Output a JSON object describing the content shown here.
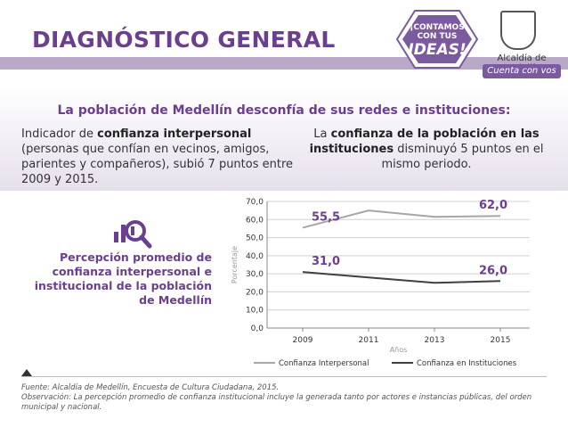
{
  "header": {
    "title": "DIAGNÓSTICO GENERAL",
    "badge_line1": "¡CONTAMOS",
    "badge_line2": "CON TUS",
    "badge_line3": "IDEAS!",
    "logo_name": "Alcaldía de Medellín",
    "logo_tagline": "Cuenta con vos"
  },
  "subtitle": "La población de Medellín desconfía de sus redes e instituciones:",
  "left_text": {
    "pre": "Indicador de ",
    "bold": "confianza interpersonal",
    "post": " (personas que confían en vecinos, amigos, parientes y compañeros), subió 7 puntos entre 2009 y 2015."
  },
  "right_text": {
    "pre": "La ",
    "bold": "confianza de la población en las instituciones",
    "post": " disminuyó 5 puntos en el mismo periodo."
  },
  "side_label": "Percepción promedio de confianza interpersonal e institucional de la población de Medellín",
  "chart_data": {
    "type": "line",
    "categories": [
      "2009",
      "2011",
      "2013",
      "2015"
    ],
    "series": [
      {
        "name": "Confianza Interpersonal",
        "values": [
          55.5,
          65.0,
          61.5,
          62.0
        ],
        "color": "#a6a6a6"
      },
      {
        "name": "Confianza en Instituciones",
        "values": [
          31.0,
          28.0,
          25.0,
          26.0
        ],
        "color": "#404040"
      }
    ],
    "annotations": [
      {
        "series": 0,
        "index": 0,
        "text": "55,5"
      },
      {
        "series": 0,
        "index": 3,
        "text": "62,0"
      },
      {
        "series": 1,
        "index": 0,
        "text": "31,0"
      },
      {
        "series": 1,
        "index": 3,
        "text": "26,0"
      }
    ],
    "yticks": [
      "0,0",
      "10,0",
      "20,0",
      "30,0",
      "40,0",
      "50,0",
      "60,0",
      "70,0"
    ],
    "ylim": [
      0,
      70
    ],
    "xlabel": "Años",
    "ylabel": "Porcentaje",
    "annotation_color": "#6b3f8f"
  },
  "footer": {
    "line1": "Fuente: Alcaldía de Medellín, Encuesta de Cultura Ciudadana, 2015.",
    "line2": "Observación: La percepción promedio de confianza institucional incluye la generada tanto por actores e instancias públicas, del orden municipal y nacional."
  }
}
